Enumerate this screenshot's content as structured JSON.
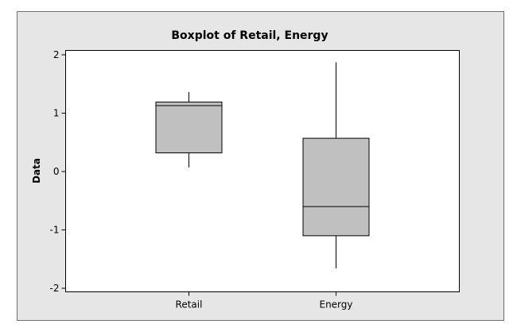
{
  "chart_data": {
    "type": "boxplot",
    "title": "Boxplot of Retail, Energy",
    "ylabel": "Data",
    "xlabel": "",
    "ylim": [
      -2.1,
      2.1
    ],
    "yticks": [
      {
        "value": 2,
        "label": "2"
      },
      {
        "value": 1,
        "label": "1"
      },
      {
        "value": 0,
        "label": "0"
      },
      {
        "value": -1,
        "label": "-1"
      },
      {
        "value": -2,
        "label": "-2"
      }
    ],
    "categories": [
      "Retail",
      "Energy"
    ],
    "series": [
      {
        "category": "Retail",
        "min": 0.07,
        "q1": 0.32,
        "median": 1.13,
        "q3": 1.19,
        "max": 1.36
      },
      {
        "category": "Energy",
        "min": -1.66,
        "q1": -1.1,
        "median": -0.6,
        "q3": 0.57,
        "max": 1.87
      }
    ],
    "box_fill": "#c0c0c0",
    "frame_color": "#e6e6e6",
    "grid": false,
    "legend": "none"
  }
}
